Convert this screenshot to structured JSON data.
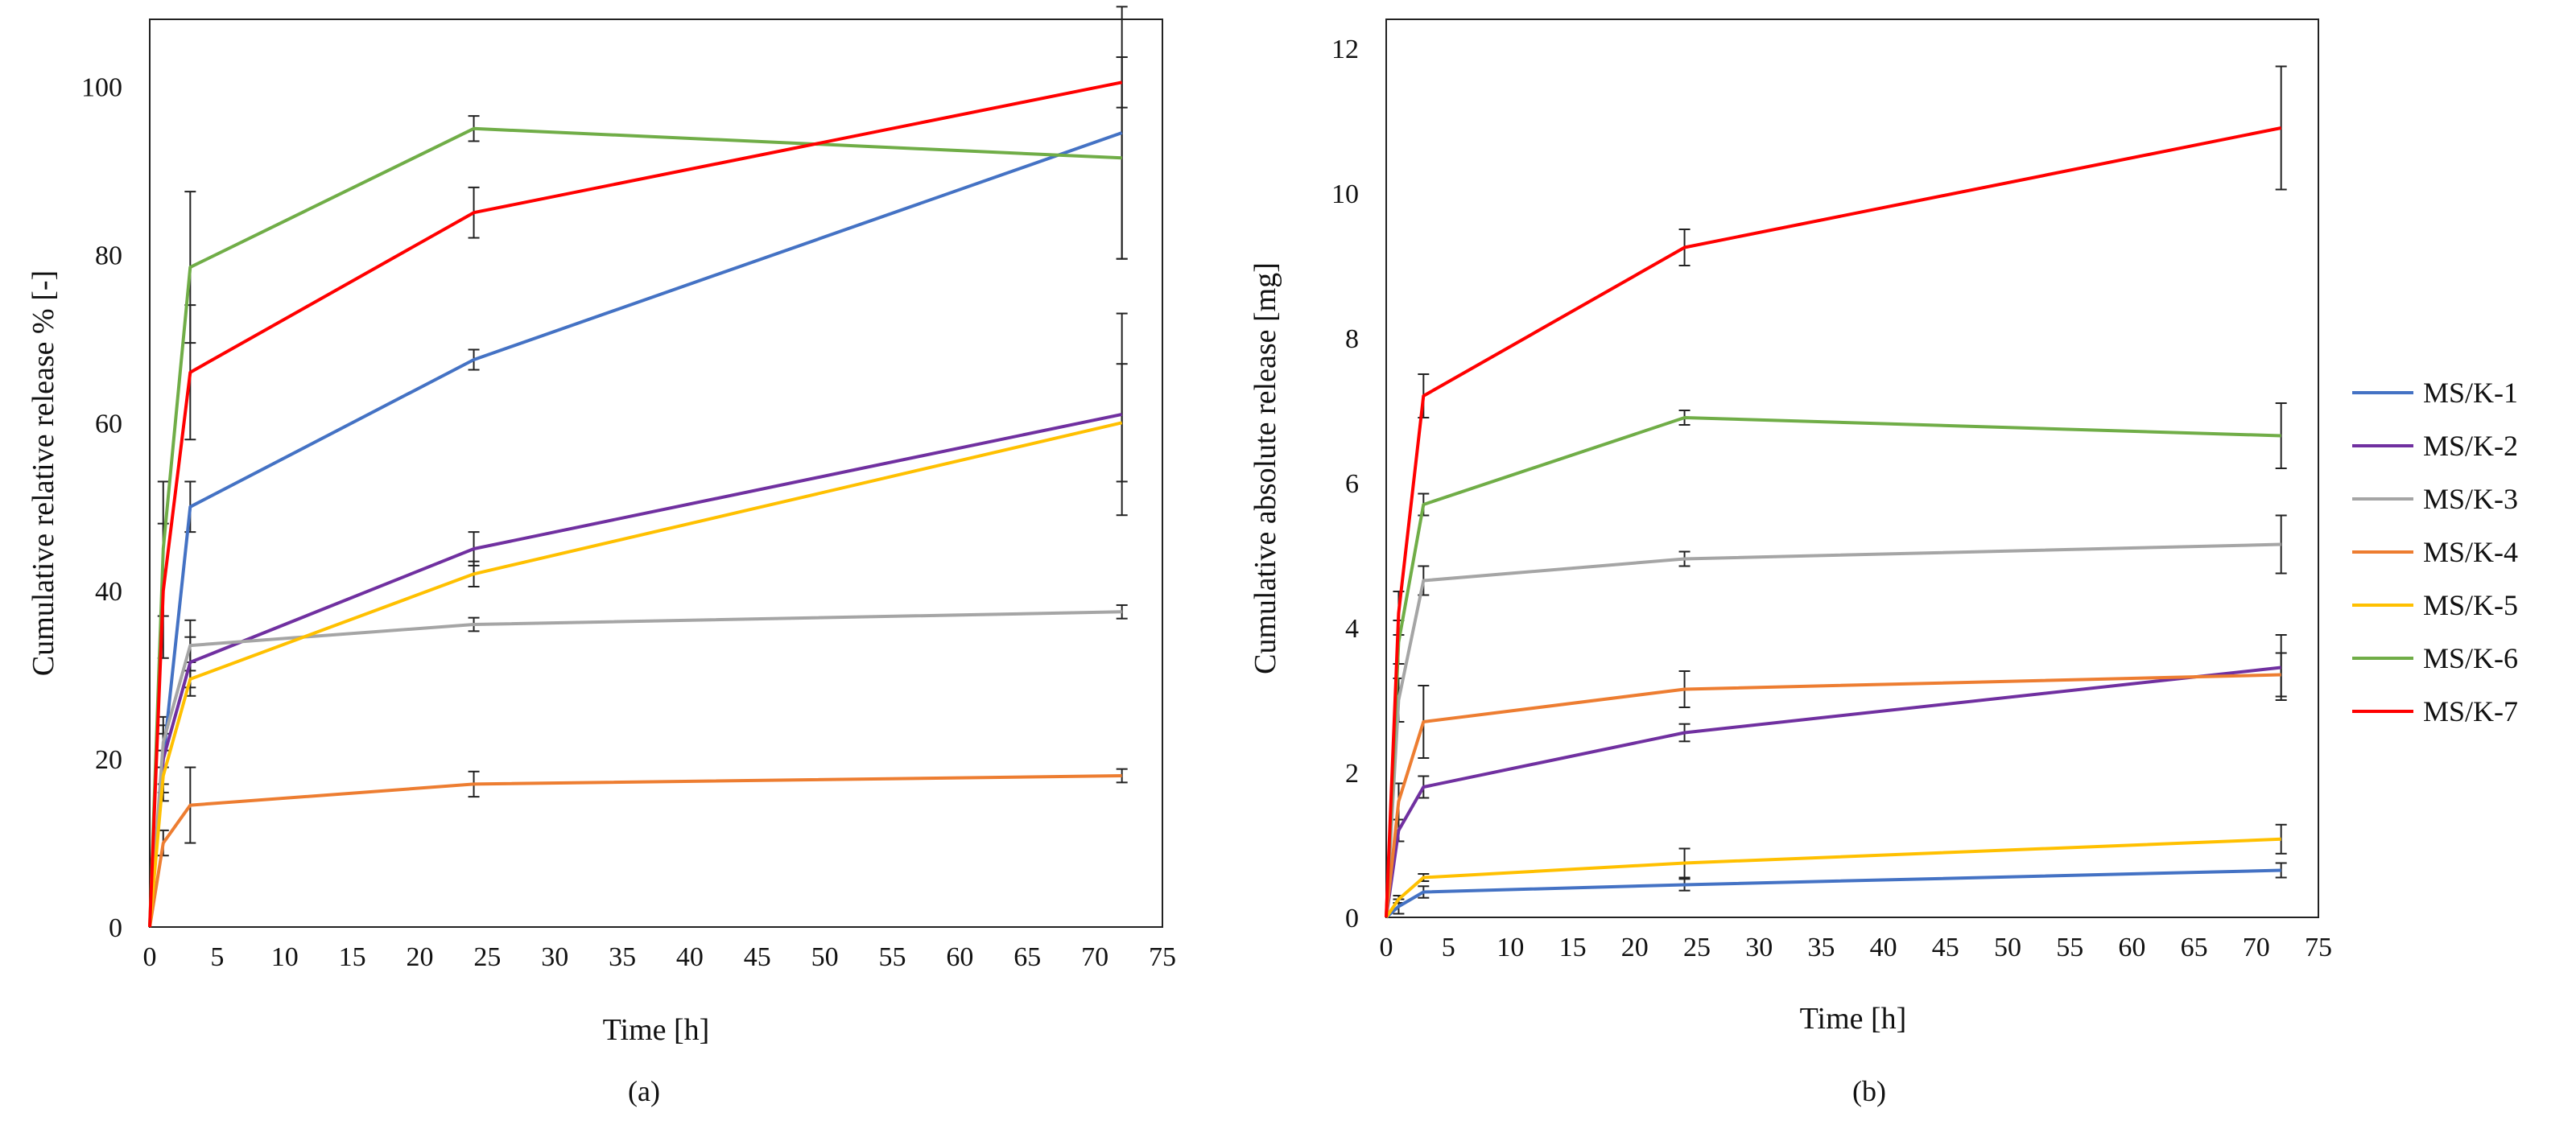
{
  "colors": {
    "MS/K-1": "#4472c4",
    "MS/K-2": "#7030a0",
    "MS/K-3": "#a5a5a5",
    "MS/K-4": "#ed7d31",
    "MS/K-5": "#ffc000",
    "MS/K-6": "#70ad47",
    "MS/K-7": "#ff0000"
  },
  "legend": {
    "items": [
      "MS/K-1",
      "MS/K-2",
      "MS/K-3",
      "MS/K-4",
      "MS/K-5",
      "MS/K-6",
      "MS/K-7"
    ],
    "placement": "right"
  },
  "chart_data": [
    {
      "type": "line",
      "panel_label": "(a)",
      "xlabel": "Time [h]",
      "ylabel": "Cumulative relative release % [-]",
      "xlim": [
        0,
        75
      ],
      "ylim": [
        0,
        108
      ],
      "xticks": [
        "0",
        "5",
        "10",
        "15",
        "20",
        "25",
        "30",
        "35",
        "40",
        "45",
        "50",
        "55",
        "60",
        "65",
        "70",
        "75"
      ],
      "yticks": [
        "0",
        "20",
        "40",
        "60",
        "80",
        "100"
      ],
      "x": [
        0,
        1,
        3,
        24,
        72
      ],
      "series": [
        {
          "name": "MS/K-1",
          "values": [
            0,
            20,
            50,
            67.5,
            94.5
          ],
          "errors": [
            0,
            4,
            3,
            1.2,
            15
          ]
        },
        {
          "name": "MS/K-2",
          "values": [
            0,
            20,
            31.5,
            45,
            61
          ],
          "errors": [
            0,
            3,
            3,
            2,
            12
          ]
        },
        {
          "name": "MS/K-3",
          "values": [
            0,
            22,
            33.5,
            36,
            37.5
          ],
          "errors": [
            0,
            3,
            3,
            0.8,
            0.8
          ]
        },
        {
          "name": "MS/K-4",
          "values": [
            0,
            10,
            14.5,
            17,
            18
          ],
          "errors": [
            0,
            1.5,
            4.5,
            1.5,
            0.8
          ]
        },
        {
          "name": "MS/K-5",
          "values": [
            0,
            18,
            29.5,
            42,
            60
          ],
          "errors": [
            0,
            3,
            2,
            1.5,
            7
          ]
        },
        {
          "name": "MS/K-6",
          "values": [
            0,
            45,
            78.5,
            95,
            91.5
          ],
          "errors": [
            0,
            8,
            9,
            1.5,
            12
          ]
        },
        {
          "name": "MS/K-7",
          "values": [
            0,
            40,
            66,
            85,
            100.5
          ],
          "errors": [
            0,
            8,
            8,
            3,
            3
          ]
        }
      ]
    },
    {
      "type": "line",
      "panel_label": "(b)",
      "xlabel": "Time [h]",
      "ylabel": "Cumulative absolute release [mg]",
      "xlim": [
        0,
        75
      ],
      "ylim": [
        0,
        12.4
      ],
      "xticks": [
        "0",
        "5",
        "10",
        "15",
        "20",
        "25",
        "30",
        "35",
        "40",
        "45",
        "50",
        "55",
        "60",
        "65",
        "70",
        "75"
      ],
      "yticks": [
        "0",
        "2",
        "4",
        "6",
        "8",
        "10",
        "12"
      ],
      "x": [
        0,
        1,
        3,
        24,
        72
      ],
      "series": [
        {
          "name": "MS/K-1",
          "values": [
            0,
            0.15,
            0.35,
            0.45,
            0.65
          ],
          "errors": [
            0,
            0.1,
            0.08,
            0.08,
            0.1
          ]
        },
        {
          "name": "MS/K-2",
          "values": [
            0,
            1.2,
            1.8,
            2.55,
            3.45
          ],
          "errors": [
            0,
            0.15,
            0.15,
            0.12,
            0.45
          ]
        },
        {
          "name": "MS/K-3",
          "values": [
            0,
            3.0,
            4.65,
            4.95,
            5.15
          ],
          "errors": [
            0,
            0.3,
            0.2,
            0.1,
            0.4
          ]
        },
        {
          "name": "MS/K-4",
          "values": [
            0,
            1.6,
            2.7,
            3.15,
            3.35
          ],
          "errors": [
            0,
            0.25,
            0.5,
            0.25,
            0.3
          ]
        },
        {
          "name": "MS/K-5",
          "values": [
            0,
            0.25,
            0.55,
            0.75,
            1.08
          ],
          "errors": [
            0,
            0.05,
            0.05,
            0.2,
            0.2
          ]
        },
        {
          "name": "MS/K-6",
          "values": [
            0,
            3.8,
            5.7,
            6.9,
            6.65
          ],
          "errors": [
            0,
            0.3,
            0.15,
            0.1,
            0.45
          ]
        },
        {
          "name": "MS/K-7",
          "values": [
            0,
            4.2,
            7.2,
            9.25,
            10.9
          ],
          "errors": [
            0,
            0.3,
            0.3,
            0.25,
            0.85
          ]
        }
      ]
    }
  ]
}
